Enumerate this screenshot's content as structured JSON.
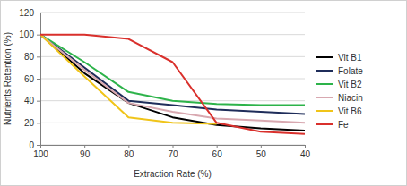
{
  "chart_data": {
    "type": "line",
    "x_label": "Extraction Rate (%)",
    "y_label": "Nutrients Retention (%)",
    "x": [
      100,
      90,
      80,
      70,
      60,
      50,
      40
    ],
    "xlim": [
      100,
      40
    ],
    "xticks": [
      100,
      90,
      80,
      70,
      60,
      50,
      40
    ],
    "ylim": [
      0,
      120
    ],
    "yticks": [
      0,
      20,
      40,
      60,
      80,
      100,
      120
    ],
    "grid": true,
    "legend": "right",
    "series": [
      {
        "name": "Vit B1",
        "color": "#000000",
        "values": [
          100,
          65,
          38,
          25,
          18,
          15,
          13
        ]
      },
      {
        "name": "Folate",
        "color": "#1f2d5a",
        "values": [
          100,
          70,
          40,
          36,
          32,
          30,
          28
        ]
      },
      {
        "name": "Vit B2",
        "color": "#2db34a",
        "values": [
          100,
          75,
          48,
          40,
          37,
          36,
          36
        ]
      },
      {
        "name": "Niacin",
        "color": "#d8a8b0",
        "values": [
          100,
          68,
          38,
          30,
          24,
          22,
          20
        ]
      },
      {
        "name": "Vit B6",
        "color": "#f0c419",
        "values": [
          100,
          62,
          25,
          20,
          19,
          null,
          null
        ]
      },
      {
        "name": "Fe",
        "color": "#d9302c",
        "values": [
          100,
          100,
          96,
          75,
          20,
          12,
          10
        ]
      }
    ]
  }
}
